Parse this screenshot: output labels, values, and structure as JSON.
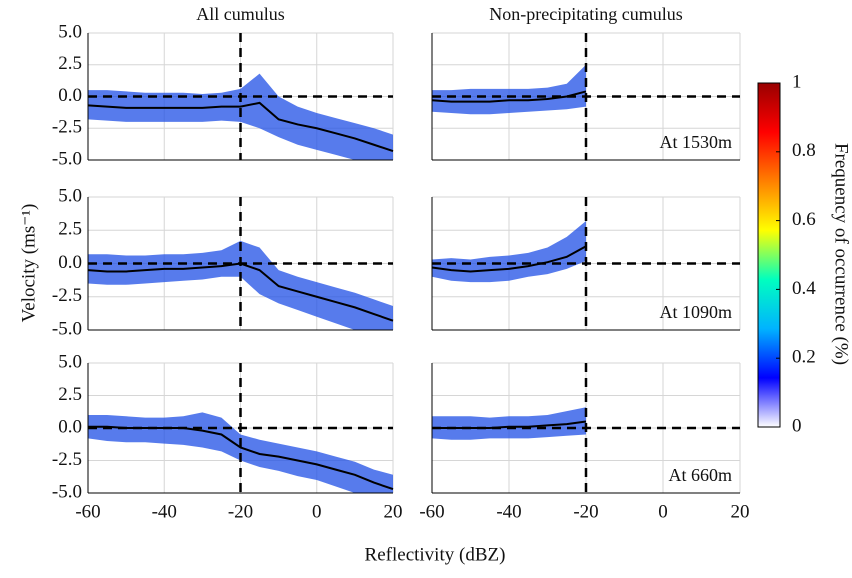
{
  "figure": {
    "xlabel": "Reflectivity (dBZ)",
    "ylabel": "Velocity (ms⁻¹)",
    "colorbar": {
      "label": "Frequency of occurrence (%)",
      "lim": [
        0,
        1
      ],
      "ticks": [
        0,
        0.2,
        0.4,
        0.6,
        0.8,
        1
      ],
      "colors": [
        "#ffffff",
        "#0000ff",
        "#00b3ff",
        "#00ffbf",
        "#ffff00",
        "#ff8000",
        "#ff0000",
        "#990000"
      ]
    }
  },
  "chart_data": [
    {
      "type": "area-line",
      "title": "All cumulus",
      "xlim": [
        -60,
        20
      ],
      "ylim": [
        -5,
        5
      ],
      "xticks": [
        -60,
        -40,
        -20,
        0,
        20
      ],
      "yticks": [
        {
          "value": 5,
          "label": "5.0"
        },
        {
          "value": 2.5,
          "label": "2.5"
        },
        {
          "value": 0,
          "label": "0.0"
        },
        {
          "value": -2.5,
          "label": "-2.5"
        },
        {
          "value": -5,
          "label": "-5.0"
        }
      ],
      "ref_x": -20,
      "ref_y": 0,
      "grid": true,
      "color": "#000000",
      "fill": "#1f4fe6",
      "x": [
        -60,
        -55,
        -50,
        -45,
        -40,
        -35,
        -30,
        -25,
        -20,
        -15,
        -10,
        -5,
        0,
        5,
        10,
        15,
        20
      ],
      "values": [
        -0.7,
        -0.8,
        -0.9,
        -0.9,
        -0.9,
        -0.9,
        -0.9,
        -0.8,
        -0.8,
        -0.5,
        -1.8,
        -2.2,
        -2.5,
        -2.9,
        -3.3,
        -3.8,
        -4.3
      ],
      "lower": [
        -1.8,
        -1.9,
        -2,
        -2,
        -2,
        -2,
        -2,
        -1.9,
        -2,
        -2.5,
        -3.2,
        -3.8,
        -4.2,
        -4.6,
        -5,
        -5,
        -5
      ],
      "upper": [
        0.5,
        0.5,
        0.4,
        0.3,
        0.3,
        0.3,
        0.2,
        0.3,
        0.6,
        1.8,
        0,
        -0.8,
        -1.3,
        -1.7,
        -2.1,
        -2.5,
        -3
      ]
    },
    {
      "type": "area-line",
      "title": "Non-precipitating cumulus",
      "annotation": "At 1530m",
      "xlim": [
        -60,
        20
      ],
      "ylim": [
        -5,
        5
      ],
      "xticks": [
        -60,
        -40,
        -20,
        0,
        20
      ],
      "yticks": [
        5,
        2.5,
        0,
        -2.5,
        -5
      ],
      "ref_x": -20,
      "ref_y": 0,
      "grid": true,
      "color": "#000000",
      "fill": "#1f4fe6",
      "x": [
        -60,
        -55,
        -50,
        -45,
        -40,
        -35,
        -30,
        -25,
        -20
      ],
      "values": [
        -0.3,
        -0.4,
        -0.4,
        -0.4,
        -0.3,
        -0.3,
        -0.2,
        0,
        0.4
      ],
      "lower": [
        -1.2,
        -1.3,
        -1.4,
        -1.4,
        -1.3,
        -1.2,
        -1.1,
        -1,
        -0.8
      ],
      "upper": [
        0.5,
        0.5,
        0.6,
        0.6,
        0.6,
        0.6,
        0.7,
        1,
        2.5
      ]
    },
    {
      "type": "area-line",
      "xlim": [
        -60,
        20
      ],
      "ylim": [
        -5,
        5
      ],
      "xticks": [
        -60,
        -40,
        -20,
        0,
        20
      ],
      "yticks": [
        {
          "value": 5,
          "label": "5.0"
        },
        {
          "value": 2.5,
          "label": "2.5"
        },
        {
          "value": 0,
          "label": "0.0"
        },
        {
          "value": -2.5,
          "label": "-2.5"
        },
        {
          "value": -5,
          "label": "-5.0"
        }
      ],
      "ref_x": -20,
      "ref_y": 0,
      "grid": true,
      "color": "#000000",
      "fill": "#1f4fe6",
      "x": [
        -60,
        -55,
        -50,
        -45,
        -40,
        -35,
        -30,
        -25,
        -20,
        -15,
        -10,
        -5,
        0,
        5,
        10,
        15,
        20
      ],
      "values": [
        -0.5,
        -0.6,
        -0.6,
        -0.5,
        -0.4,
        -0.4,
        -0.3,
        -0.2,
        0,
        -0.5,
        -1.7,
        -2.1,
        -2.5,
        -2.9,
        -3.3,
        -3.8,
        -4.3
      ],
      "lower": [
        -1.5,
        -1.6,
        -1.6,
        -1.5,
        -1.4,
        -1.3,
        -1.2,
        -1,
        -1,
        -2.3,
        -3,
        -3.5,
        -4,
        -4.5,
        -5,
        -5,
        -5
      ],
      "upper": [
        0.7,
        0.7,
        0.6,
        0.6,
        0.7,
        0.7,
        0.8,
        1,
        1.7,
        1.2,
        -0.5,
        -1,
        -1.4,
        -1.8,
        -2.2,
        -2.7,
        -3.2
      ]
    },
    {
      "type": "area-line",
      "annotation": "At 1090m",
      "xlim": [
        -60,
        20
      ],
      "ylim": [
        -5,
        5
      ],
      "xticks": [
        -60,
        -40,
        -20,
        0,
        20
      ],
      "yticks": [
        5,
        2.5,
        0,
        -2.5,
        -5
      ],
      "ref_x": -20,
      "ref_y": 0,
      "grid": true,
      "color": "#000000",
      "fill": "#1f4fe6",
      "x": [
        -60,
        -55,
        -50,
        -45,
        -40,
        -35,
        -30,
        -25,
        -20
      ],
      "values": [
        -0.3,
        -0.5,
        -0.6,
        -0.5,
        -0.4,
        -0.2,
        0.1,
        0.5,
        1.3
      ],
      "lower": [
        -1,
        -1.3,
        -1.4,
        -1.4,
        -1.3,
        -1,
        -0.8,
        -0.4,
        0.2
      ],
      "upper": [
        0.3,
        0.4,
        0.3,
        0.5,
        0.6,
        0.8,
        1.2,
        2,
        3.2
      ]
    },
    {
      "type": "area-line",
      "xlim": [
        -60,
        20
      ],
      "ylim": [
        -5,
        5
      ],
      "xticks": [
        -60,
        -40,
        -20,
        0,
        20
      ],
      "yticks": [
        {
          "value": 5,
          "label": "5.0"
        },
        {
          "value": 2.5,
          "label": "2.5"
        },
        {
          "value": 0,
          "label": "0.0"
        },
        {
          "value": -2.5,
          "label": "-2.5"
        },
        {
          "value": -5,
          "label": "-5.0"
        }
      ],
      "ref_x": -20,
      "ref_y": 0,
      "grid": true,
      "color": "#000000",
      "fill": "#1f4fe6",
      "x": [
        -60,
        -55,
        -50,
        -45,
        -40,
        -35,
        -30,
        -25,
        -20,
        -15,
        -10,
        -5,
        0,
        5,
        10,
        15,
        20
      ],
      "values": [
        0.1,
        0.1,
        0,
        0,
        0,
        0,
        -0.2,
        -0.5,
        -1.5,
        -2,
        -2.2,
        -2.5,
        -2.8,
        -3.2,
        -3.6,
        -4.2,
        -4.7
      ],
      "lower": [
        -0.8,
        -1,
        -1.1,
        -1.1,
        -1.2,
        -1.3,
        -1.5,
        -1.8,
        -2.5,
        -3,
        -3.3,
        -3.7,
        -4,
        -4.5,
        -5,
        -5,
        -5
      ],
      "upper": [
        1,
        1,
        0.9,
        0.8,
        0.8,
        0.9,
        1.2,
        0.8,
        -0.5,
        -0.9,
        -1.2,
        -1.5,
        -1.8,
        -2.2,
        -2.6,
        -3.2,
        -3.6
      ]
    },
    {
      "type": "area-line",
      "annotation": "At 660m",
      "xlim": [
        -60,
        20
      ],
      "ylim": [
        -5,
        5
      ],
      "xticks": [
        -60,
        -40,
        -20,
        0,
        20
      ],
      "yticks": [
        5,
        2.5,
        0,
        -2.5,
        -5
      ],
      "ref_x": -20,
      "ref_y": 0,
      "grid": true,
      "color": "#000000",
      "fill": "#1f4fe6",
      "x": [
        -60,
        -55,
        -50,
        -45,
        -40,
        -35,
        -30,
        -25,
        -20
      ],
      "values": [
        0,
        0,
        0,
        0,
        0.1,
        0.1,
        0.2,
        0.3,
        0.5
      ],
      "lower": [
        -0.8,
        -0.9,
        -0.9,
        -0.8,
        -0.8,
        -0.8,
        -0.7,
        -0.6,
        -0.5
      ],
      "upper": [
        0.9,
        0.9,
        0.9,
        0.8,
        0.9,
        0.9,
        1,
        1.3,
        1.6
      ]
    }
  ]
}
